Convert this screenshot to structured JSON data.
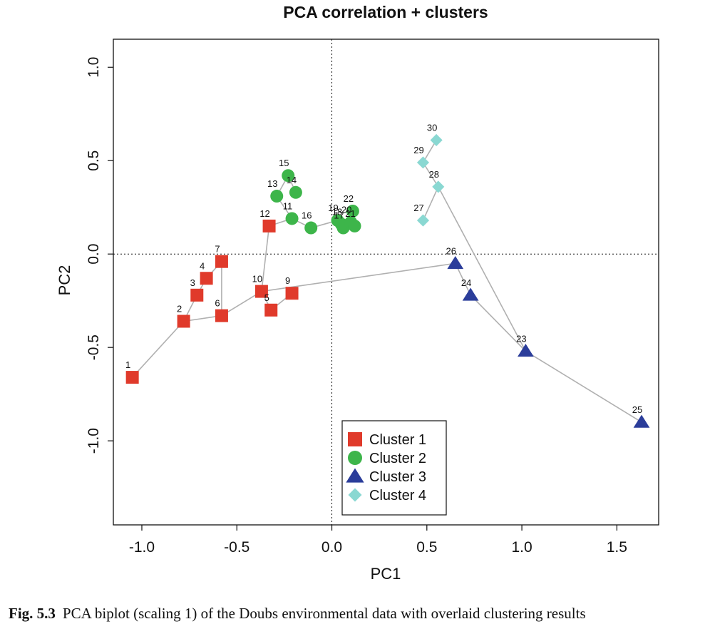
{
  "chart_data": {
    "type": "scatter",
    "title": "PCA correlation + clusters",
    "xlabel": "PC1",
    "ylabel": "PC2",
    "xlim": [
      -1.15,
      1.72
    ],
    "ylim": [
      -1.45,
      1.15
    ],
    "x_ticks": [
      -1.0,
      -0.5,
      0.0,
      0.5,
      1.0,
      1.5
    ],
    "x_tick_labels": [
      "-1.0",
      "-0.5",
      "0.0",
      "0.5",
      "1.0",
      "1.5"
    ],
    "y_ticks": [
      -1.0,
      -0.5,
      0.0,
      0.5,
      1.0
    ],
    "y_tick_labels": [
      "-1.0",
      "-0.5",
      "0.0",
      "0.5",
      "1.0"
    ],
    "reference_lines": {
      "x": 0,
      "y": 0,
      "style": "dotted"
    },
    "grid": false,
    "legend_position": "bottom-center",
    "series": [
      {
        "name": "Cluster 1",
        "marker": "square",
        "color": "#e03a2b"
      },
      {
        "name": "Cluster 2",
        "marker": "circle",
        "color": "#3db54a"
      },
      {
        "name": "Cluster 3",
        "marker": "triangle",
        "color": "#2b3d9a"
      },
      {
        "name": "Cluster 4",
        "marker": "diamond",
        "color": "#8ad8d2"
      }
    ],
    "points": [
      {
        "label": "1",
        "x": -1.05,
        "y": -0.66,
        "cluster": 1
      },
      {
        "label": "2",
        "x": -0.78,
        "y": -0.36,
        "cluster": 1
      },
      {
        "label": "3",
        "x": -0.71,
        "y": -0.22,
        "cluster": 1
      },
      {
        "label": "4",
        "x": -0.66,
        "y": -0.13,
        "cluster": 1
      },
      {
        "label": "5",
        "x": -0.32,
        "y": -0.3,
        "cluster": 1
      },
      {
        "label": "6",
        "x": -0.58,
        "y": -0.33,
        "cluster": 1
      },
      {
        "label": "7",
        "x": -0.58,
        "y": -0.04,
        "cluster": 1
      },
      {
        "label": "9",
        "x": -0.21,
        "y": -0.21,
        "cluster": 1
      },
      {
        "label": "10",
        "x": -0.37,
        "y": -0.2,
        "cluster": 1
      },
      {
        "label": "12",
        "x": -0.33,
        "y": 0.15,
        "cluster": 1
      },
      {
        "label": "11",
        "x": -0.21,
        "y": 0.19,
        "cluster": 2
      },
      {
        "label": "13",
        "x": -0.29,
        "y": 0.31,
        "cluster": 2
      },
      {
        "label": "14",
        "x": -0.19,
        "y": 0.33,
        "cluster": 2
      },
      {
        "label": "15",
        "x": -0.23,
        "y": 0.42,
        "cluster": 2
      },
      {
        "label": "16",
        "x": -0.11,
        "y": 0.14,
        "cluster": 2
      },
      {
        "label": "17",
        "x": 0.06,
        "y": 0.14,
        "cluster": 2
      },
      {
        "label": "18",
        "x": 0.05,
        "y": 0.16,
        "cluster": 2
      },
      {
        "label": "19",
        "x": 0.03,
        "y": 0.18,
        "cluster": 2
      },
      {
        "label": "20",
        "x": 0.1,
        "y": 0.17,
        "cluster": 2
      },
      {
        "label": "21",
        "x": 0.12,
        "y": 0.15,
        "cluster": 2
      },
      {
        "label": "22",
        "x": 0.11,
        "y": 0.23,
        "cluster": 2
      },
      {
        "label": "23",
        "x": 1.02,
        "y": -0.52,
        "cluster": 3
      },
      {
        "label": "24",
        "x": 0.73,
        "y": -0.22,
        "cluster": 3
      },
      {
        "label": "25",
        "x": 1.63,
        "y": -0.9,
        "cluster": 3
      },
      {
        "label": "26",
        "x": 0.65,
        "y": -0.05,
        "cluster": 3
      },
      {
        "label": "27",
        "x": 0.48,
        "y": 0.18,
        "cluster": 4
      },
      {
        "label": "28",
        "x": 0.56,
        "y": 0.36,
        "cluster": 4
      },
      {
        "label": "29",
        "x": 0.48,
        "y": 0.49,
        "cluster": 4
      },
      {
        "label": "30",
        "x": 0.55,
        "y": 0.61,
        "cluster": 4
      }
    ],
    "spanning_tree_edges": [
      [
        "1",
        "2"
      ],
      [
        "2",
        "6"
      ],
      [
        "2",
        "3"
      ],
      [
        "3",
        "4"
      ],
      [
        "4",
        "7"
      ],
      [
        "6",
        "7"
      ],
      [
        "6",
        "10"
      ],
      [
        "10",
        "5"
      ],
      [
        "5",
        "9"
      ],
      [
        "10",
        "12"
      ],
      [
        "12",
        "11"
      ],
      [
        "11",
        "13"
      ],
      [
        "13",
        "15"
      ],
      [
        "15",
        "14"
      ],
      [
        "11",
        "16"
      ],
      [
        "16",
        "19"
      ],
      [
        "19",
        "18"
      ],
      [
        "18",
        "17"
      ],
      [
        "17",
        "20"
      ],
      [
        "20",
        "21"
      ],
      [
        "20",
        "22"
      ],
      [
        "10",
        "26"
      ],
      [
        "26",
        "24"
      ],
      [
        "24",
        "23"
      ],
      [
        "23",
        "25"
      ],
      [
        "23",
        "28"
      ],
      [
        "28",
        "27"
      ],
      [
        "28",
        "29"
      ],
      [
        "29",
        "30"
      ]
    ]
  },
  "caption": {
    "figure": "Fig. 5.3",
    "text": "PCA biplot (scaling 1) of the Doubs environmental data with overlaid clustering results"
  }
}
